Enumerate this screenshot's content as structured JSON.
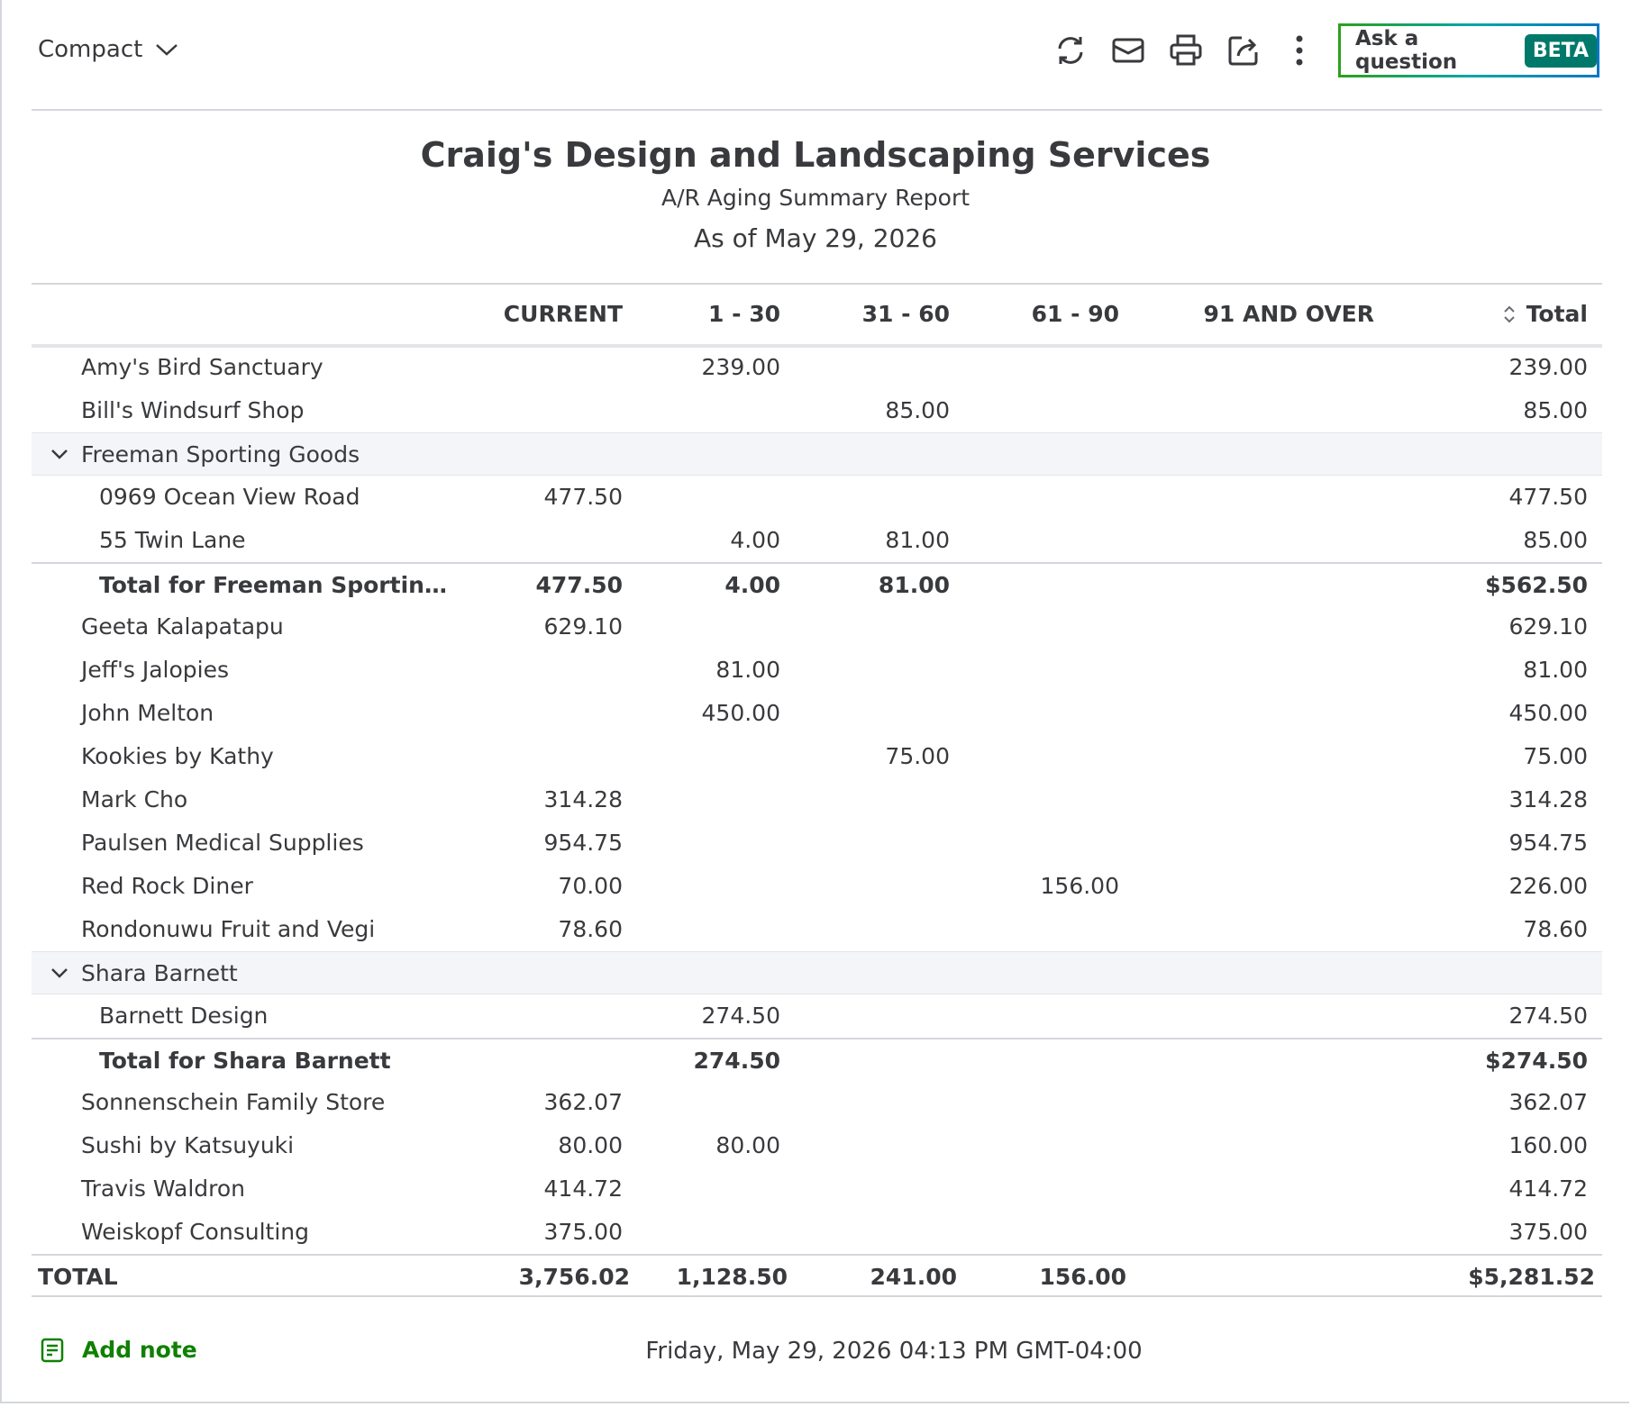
{
  "toolbar": {
    "view": "Compact",
    "ask_button": "Ask a question",
    "badge": "BETA"
  },
  "header": {
    "company": "Craig's Design and Landscaping Services",
    "report": "A/R Aging Summary Report",
    "date": "As of May 29, 2026"
  },
  "table": {
    "columns": [
      "CURRENT",
      "1 - 30",
      "31 - 60",
      "61 - 90",
      "91 AND OVER",
      "Total"
    ],
    "rows": [
      {
        "label": "Amy's Bird Sanctuary",
        "cells": [
          null,
          "239.00",
          null,
          null,
          null,
          "239.00"
        ]
      },
      {
        "label": "Bill's Windsurf Shop",
        "cells": [
          null,
          null,
          "85.00",
          null,
          null,
          "85.00"
        ]
      },
      {
        "label": "Freeman Sporting Goods",
        "children": [
          {
            "label": "0969 Ocean View Road",
            "cells": [
              "477.50",
              null,
              null,
              null,
              null,
              "477.50"
            ]
          },
          {
            "label": "55 Twin Lane",
            "cells": [
              null,
              "4.00",
              "81.00",
              null,
              null,
              "85.00"
            ]
          }
        ],
        "total": {
          "label": "Total for Freeman Sportin…",
          "cells": [
            "477.50",
            "4.00",
            "81.00",
            null,
            null,
            "$562.50"
          ]
        }
      },
      {
        "label": "Geeta Kalapatapu",
        "cells": [
          "629.10",
          null,
          null,
          null,
          null,
          "629.10"
        ]
      },
      {
        "label": "Jeff's Jalopies",
        "cells": [
          null,
          "81.00",
          null,
          null,
          null,
          "81.00"
        ]
      },
      {
        "label": "John Melton",
        "cells": [
          null,
          "450.00",
          null,
          null,
          null,
          "450.00"
        ]
      },
      {
        "label": "Kookies by Kathy",
        "cells": [
          null,
          null,
          "75.00",
          null,
          null,
          "75.00"
        ]
      },
      {
        "label": "Mark Cho",
        "cells": [
          "314.28",
          null,
          null,
          null,
          null,
          "314.28"
        ]
      },
      {
        "label": "Paulsen Medical Supplies",
        "cells": [
          "954.75",
          null,
          null,
          null,
          null,
          "954.75"
        ]
      },
      {
        "label": "Red Rock Diner",
        "cells": [
          "70.00",
          null,
          null,
          "156.00",
          null,
          "226.00"
        ]
      },
      {
        "label": "Rondonuwu Fruit and Vegi",
        "cells": [
          "78.60",
          null,
          null,
          null,
          null,
          "78.60"
        ]
      },
      {
        "label": "Shara Barnett",
        "children": [
          {
            "label": "Barnett Design",
            "cells": [
              null,
              "274.50",
              null,
              null,
              null,
              "274.50"
            ]
          }
        ],
        "total": {
          "label": "Total for Shara Barnett",
          "cells": [
            null,
            "274.50",
            null,
            null,
            null,
            "$274.50"
          ]
        }
      },
      {
        "label": "Sonnenschein Family Store",
        "cells": [
          "362.07",
          null,
          null,
          null,
          null,
          "362.07"
        ]
      },
      {
        "label": "Sushi by Katsuyuki",
        "cells": [
          "80.00",
          "80.00",
          null,
          null,
          null,
          "160.00"
        ]
      },
      {
        "label": "Travis Waldron",
        "cells": [
          "414.72",
          null,
          null,
          null,
          null,
          "414.72"
        ]
      },
      {
        "label": "Weiskopf Consulting",
        "cells": [
          "375.00",
          null,
          null,
          null,
          null,
          "375.00"
        ]
      }
    ],
    "grand_total": {
      "label": "TOTAL",
      "cells": [
        "3,756.02",
        "1,128.50",
        "241.00",
        "156.00",
        null,
        "$5,281.52"
      ]
    }
  },
  "footer": {
    "add_note": "Add note",
    "timestamp": "Friday, May 29, 2026 04:13 PM GMT-04:00"
  }
}
